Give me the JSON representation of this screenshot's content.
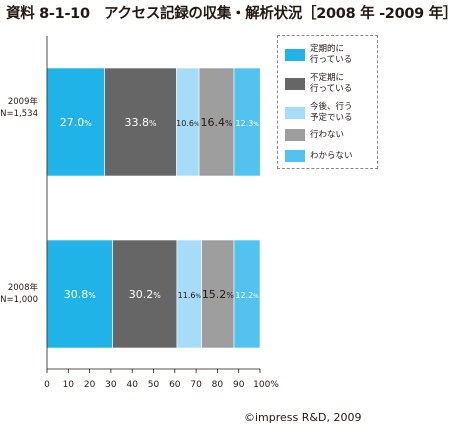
{
  "title": "資料 8-1-10　アクセス記録の収集・解析状況［2008 年 -2009 年］",
  "copyright": "©impress R&D, 2009",
  "chart_data": {
    "type": "bar",
    "orientation": "horizontal",
    "stacked": true,
    "categories": [
      "2009年\nN=1,534",
      "2008年\nN=1,000"
    ],
    "series": [
      {
        "name": "定期的に\n行っている",
        "color": "#1fb3e8",
        "values": [
          27.0,
          30.8
        ],
        "labels": [
          "27.0%",
          "30.8%"
        ]
      },
      {
        "name": "不定期に\n行っている",
        "color": "#666666",
        "values": [
          33.8,
          30.2
        ],
        "labels": [
          "33.8%",
          "30.2%"
        ]
      },
      {
        "name": "今後、行う\n予定でいる",
        "color": "#a6dcf7",
        "values": [
          10.6,
          11.6
        ],
        "labels": [
          "10.6%",
          "11.6%"
        ]
      },
      {
        "name": "行わない",
        "color": "#9e9e9e",
        "values": [
          16.4,
          15.2
        ],
        "labels": [
          "16.4%",
          "15.2%"
        ]
      },
      {
        "name": "わからない",
        "color": "#52c2ee",
        "values": [
          12.3,
          12.2
        ],
        "labels": [
          "12.3%",
          "12.2%"
        ]
      }
    ],
    "xlim": [
      0,
      100
    ],
    "xticks": [
      "0",
      "10",
      "20",
      "30",
      "40",
      "50",
      "60",
      "70",
      "80",
      "90",
      "100%"
    ],
    "legend_position": "right"
  }
}
